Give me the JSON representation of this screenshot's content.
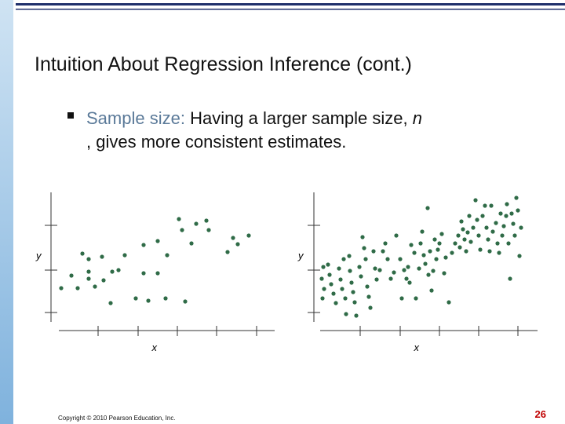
{
  "header": {
    "title": "Intuition About Regression Inference (cont.)"
  },
  "bullet": {
    "lead": "Sample size:",
    "text": " Having a larger sample size, ",
    "italic": "n",
    "rest": ", gives more consistent estimates."
  },
  "chart_data": [
    {
      "type": "scatter",
      "x_label": "x",
      "y_label": "y",
      "color": "#2f6b47",
      "xlim": [
        0,
        275
      ],
      "ylim": [
        0,
        165
      ],
      "x": [
        30,
        38,
        55,
        84,
        108,
        126,
        138,
        153,
        157,
        175,
        188,
        191,
        169,
        222,
        215,
        228,
        242,
        3,
        16,
        24,
        38,
        38,
        46,
        57,
        68,
        76,
        108,
        126,
        66,
        98,
        114,
        136,
        161
      ],
      "values": [
        87,
        80,
        83,
        85,
        98,
        103,
        85,
        131,
        117,
        125,
        129,
        117,
        100,
        107,
        89,
        99,
        110,
        43,
        59,
        43,
        64,
        55,
        45,
        53,
        64,
        66,
        62,
        62,
        24,
        30,
        27,
        30,
        26
      ]
    },
    {
      "type": "scatter",
      "x_label": "x",
      "y_label": "y",
      "color": "#2f6b47",
      "xlim": [
        0,
        275
      ],
      "ylim": [
        0,
        165
      ],
      "x": [
        4,
        2,
        5,
        3,
        10,
        12,
        14,
        17,
        20,
        24,
        26,
        28,
        32,
        33,
        30,
        37,
        38,
        40,
        42,
        44,
        46,
        50,
        52,
        54,
        56,
        58,
        60,
        62,
        64,
        68,
        70,
        72,
        76,
        80,
        83,
        86,
        90,
        94,
        97,
        102,
        104,
        107,
        110,
        112,
        114,
        116,
        120,
        122,
        126,
        128,
        130,
        132,
        134,
        137,
        138,
        140,
        142,
        144,
        146,
        148,
        150,
        152,
        155,
        158,
        160,
        164,
        168,
        172,
        176,
        178,
        180,
        182,
        184,
        186,
        188,
        190,
        192,
        195,
        198,
        200,
        202,
        204,
        207,
        210,
        212,
        214,
        216,
        218,
        220,
        224,
        226,
        228,
        230,
        232,
        234,
        237,
        238,
        240,
        242,
        244,
        246,
        248,
        250,
        252,
        254,
        256
      ],
      "values": [
        70,
        55,
        42,
        30,
        73,
        60,
        48,
        36,
        24,
        68,
        54,
        42,
        30,
        10,
        80,
        84,
        65,
        50,
        38,
        25,
        8,
        70,
        58,
        108,
        94,
        80,
        45,
        32,
        18,
        90,
        68,
        54,
        66,
        90,
        100,
        80,
        55,
        63,
        110,
        80,
        30,
        66,
        55,
        70,
        50,
        98,
        88,
        30,
        68,
        100,
        115,
        85,
        74,
        145,
        60,
        90,
        40,
        65,
        105,
        80,
        92,
        100,
        112,
        62,
        82,
        25,
        88,
        100,
        110,
        95,
        128,
        118,
        105,
        90,
        114,
        135,
        102,
        120,
        155,
        130,
        110,
        92,
        135,
        148,
        120,
        105,
        90,
        148,
        115,
        126,
        100,
        88,
        138,
        110,
        122,
        135,
        150,
        100,
        55,
        138,
        125,
        110,
        158,
        142,
        84,
        120
      ]
    }
  ],
  "footer": {
    "copyright": "Copyright © 2010 Pearson Education, Inc.",
    "page": "26"
  }
}
